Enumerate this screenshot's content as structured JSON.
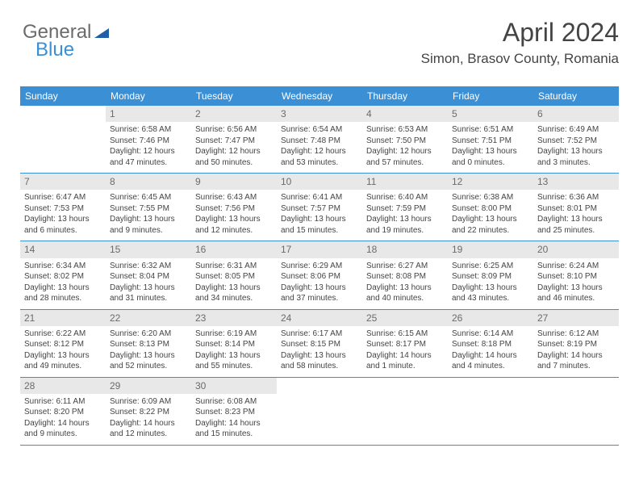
{
  "brand": {
    "general": "General",
    "blue": "Blue",
    "logo_color": "#1f5fa8"
  },
  "header": {
    "month": "April 2024",
    "location": "Simon, Brasov County, Romania"
  },
  "colors": {
    "header_bar": "#3b8fd4",
    "text": "#444444",
    "daynum_bg": "#e8e8e8",
    "border": "#3b8fd4"
  },
  "weekdays": [
    "Sunday",
    "Monday",
    "Tuesday",
    "Wednesday",
    "Thursday",
    "Friday",
    "Saturday"
  ],
  "weeks": [
    [
      {
        "n": "",
        "sr": "",
        "ss": "",
        "dl": ""
      },
      {
        "n": "1",
        "sr": "Sunrise: 6:58 AM",
        "ss": "Sunset: 7:46 PM",
        "dl": "Daylight: 12 hours and 47 minutes."
      },
      {
        "n": "2",
        "sr": "Sunrise: 6:56 AM",
        "ss": "Sunset: 7:47 PM",
        "dl": "Daylight: 12 hours and 50 minutes."
      },
      {
        "n": "3",
        "sr": "Sunrise: 6:54 AM",
        "ss": "Sunset: 7:48 PM",
        "dl": "Daylight: 12 hours and 53 minutes."
      },
      {
        "n": "4",
        "sr": "Sunrise: 6:53 AM",
        "ss": "Sunset: 7:50 PM",
        "dl": "Daylight: 12 hours and 57 minutes."
      },
      {
        "n": "5",
        "sr": "Sunrise: 6:51 AM",
        "ss": "Sunset: 7:51 PM",
        "dl": "Daylight: 13 hours and 0 minutes."
      },
      {
        "n": "6",
        "sr": "Sunrise: 6:49 AM",
        "ss": "Sunset: 7:52 PM",
        "dl": "Daylight: 13 hours and 3 minutes."
      }
    ],
    [
      {
        "n": "7",
        "sr": "Sunrise: 6:47 AM",
        "ss": "Sunset: 7:53 PM",
        "dl": "Daylight: 13 hours and 6 minutes."
      },
      {
        "n": "8",
        "sr": "Sunrise: 6:45 AM",
        "ss": "Sunset: 7:55 PM",
        "dl": "Daylight: 13 hours and 9 minutes."
      },
      {
        "n": "9",
        "sr": "Sunrise: 6:43 AM",
        "ss": "Sunset: 7:56 PM",
        "dl": "Daylight: 13 hours and 12 minutes."
      },
      {
        "n": "10",
        "sr": "Sunrise: 6:41 AM",
        "ss": "Sunset: 7:57 PM",
        "dl": "Daylight: 13 hours and 15 minutes."
      },
      {
        "n": "11",
        "sr": "Sunrise: 6:40 AM",
        "ss": "Sunset: 7:59 PM",
        "dl": "Daylight: 13 hours and 19 minutes."
      },
      {
        "n": "12",
        "sr": "Sunrise: 6:38 AM",
        "ss": "Sunset: 8:00 PM",
        "dl": "Daylight: 13 hours and 22 minutes."
      },
      {
        "n": "13",
        "sr": "Sunrise: 6:36 AM",
        "ss": "Sunset: 8:01 PM",
        "dl": "Daylight: 13 hours and 25 minutes."
      }
    ],
    [
      {
        "n": "14",
        "sr": "Sunrise: 6:34 AM",
        "ss": "Sunset: 8:02 PM",
        "dl": "Daylight: 13 hours and 28 minutes."
      },
      {
        "n": "15",
        "sr": "Sunrise: 6:32 AM",
        "ss": "Sunset: 8:04 PM",
        "dl": "Daylight: 13 hours and 31 minutes."
      },
      {
        "n": "16",
        "sr": "Sunrise: 6:31 AM",
        "ss": "Sunset: 8:05 PM",
        "dl": "Daylight: 13 hours and 34 minutes."
      },
      {
        "n": "17",
        "sr": "Sunrise: 6:29 AM",
        "ss": "Sunset: 8:06 PM",
        "dl": "Daylight: 13 hours and 37 minutes."
      },
      {
        "n": "18",
        "sr": "Sunrise: 6:27 AM",
        "ss": "Sunset: 8:08 PM",
        "dl": "Daylight: 13 hours and 40 minutes."
      },
      {
        "n": "19",
        "sr": "Sunrise: 6:25 AM",
        "ss": "Sunset: 8:09 PM",
        "dl": "Daylight: 13 hours and 43 minutes."
      },
      {
        "n": "20",
        "sr": "Sunrise: 6:24 AM",
        "ss": "Sunset: 8:10 PM",
        "dl": "Daylight: 13 hours and 46 minutes."
      }
    ],
    [
      {
        "n": "21",
        "sr": "Sunrise: 6:22 AM",
        "ss": "Sunset: 8:12 PM",
        "dl": "Daylight: 13 hours and 49 minutes."
      },
      {
        "n": "22",
        "sr": "Sunrise: 6:20 AM",
        "ss": "Sunset: 8:13 PM",
        "dl": "Daylight: 13 hours and 52 minutes."
      },
      {
        "n": "23",
        "sr": "Sunrise: 6:19 AM",
        "ss": "Sunset: 8:14 PM",
        "dl": "Daylight: 13 hours and 55 minutes."
      },
      {
        "n": "24",
        "sr": "Sunrise: 6:17 AM",
        "ss": "Sunset: 8:15 PM",
        "dl": "Daylight: 13 hours and 58 minutes."
      },
      {
        "n": "25",
        "sr": "Sunrise: 6:15 AM",
        "ss": "Sunset: 8:17 PM",
        "dl": "Daylight: 14 hours and 1 minute."
      },
      {
        "n": "26",
        "sr": "Sunrise: 6:14 AM",
        "ss": "Sunset: 8:18 PM",
        "dl": "Daylight: 14 hours and 4 minutes."
      },
      {
        "n": "27",
        "sr": "Sunrise: 6:12 AM",
        "ss": "Sunset: 8:19 PM",
        "dl": "Daylight: 14 hours and 7 minutes."
      }
    ],
    [
      {
        "n": "28",
        "sr": "Sunrise: 6:11 AM",
        "ss": "Sunset: 8:20 PM",
        "dl": "Daylight: 14 hours and 9 minutes."
      },
      {
        "n": "29",
        "sr": "Sunrise: 6:09 AM",
        "ss": "Sunset: 8:22 PM",
        "dl": "Daylight: 14 hours and 12 minutes."
      },
      {
        "n": "30",
        "sr": "Sunrise: 6:08 AM",
        "ss": "Sunset: 8:23 PM",
        "dl": "Daylight: 14 hours and 15 minutes."
      },
      {
        "n": "",
        "sr": "",
        "ss": "",
        "dl": ""
      },
      {
        "n": "",
        "sr": "",
        "ss": "",
        "dl": ""
      },
      {
        "n": "",
        "sr": "",
        "ss": "",
        "dl": ""
      },
      {
        "n": "",
        "sr": "",
        "ss": "",
        "dl": ""
      }
    ]
  ]
}
